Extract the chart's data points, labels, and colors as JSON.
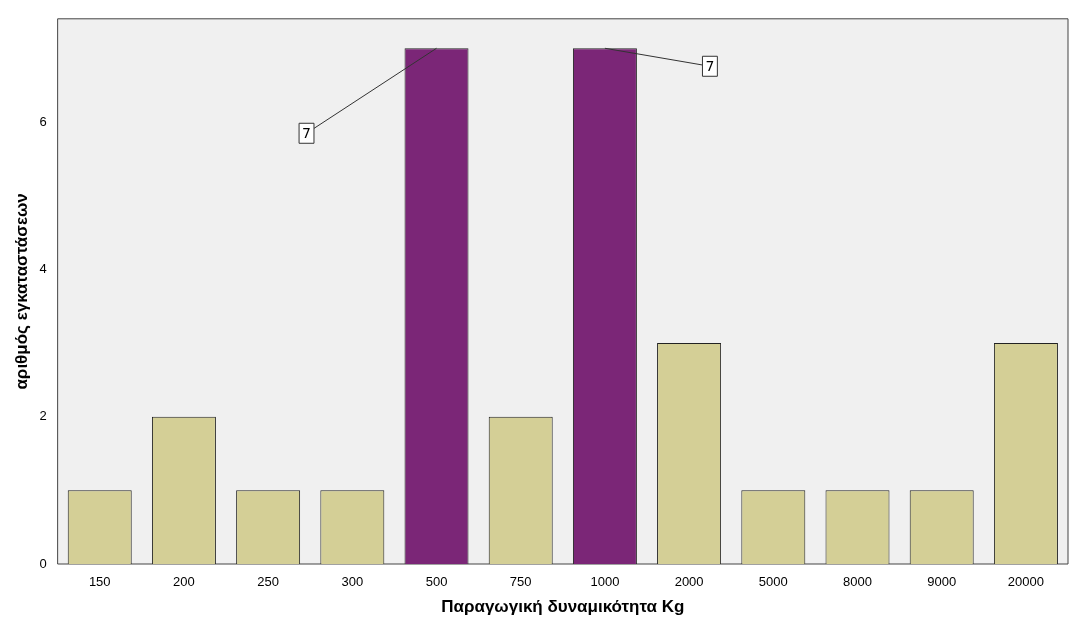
{
  "chart_data": {
    "type": "bar",
    "xlabel": "Παραγωγική δυναμικότητα Kg",
    "ylabel": "αριθμός εγκαταστάσεων",
    "categories": [
      "150",
      "200",
      "250",
      "300",
      "500",
      "750",
      "1000",
      "2000",
      "5000",
      "8000",
      "9000",
      "20000"
    ],
    "values": [
      1,
      2,
      1,
      1,
      7,
      2,
      7,
      3,
      1,
      1,
      1,
      3
    ],
    "colors": [
      "#d4cf96",
      "#d4cf96",
      "#d4cf96",
      "#d4cf96",
      "#7b2677",
      "#d4cf96",
      "#7b2677",
      "#d4cf96",
      "#d4cf96",
      "#d4cf96",
      "#d4cf96",
      "#d4cf96"
    ],
    "ylim": [
      0,
      7.4
    ],
    "yticks": [
      0,
      2,
      4,
      6
    ],
    "grid": false,
    "legend": false,
    "annotations": [
      {
        "text": "7",
        "x": "500",
        "y": 7
      },
      {
        "text": "7",
        "x": "1000",
        "y": 7
      }
    ]
  }
}
